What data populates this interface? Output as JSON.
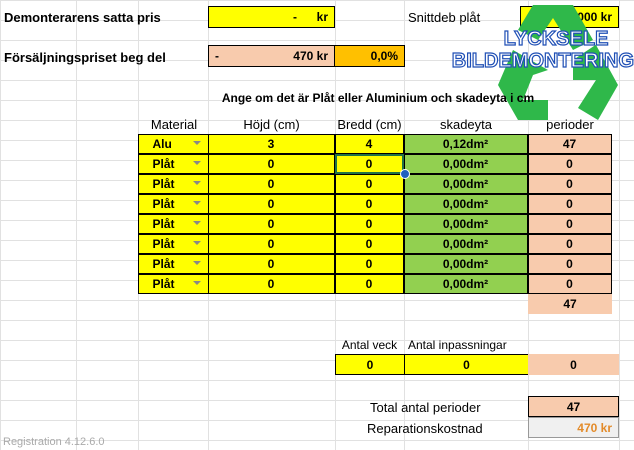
{
  "top": {
    "demont_label": "Demonterarens satta pris",
    "demont_dash": "-",
    "demont_value": "kr",
    "snitt_label": "Snittdeb plåt",
    "snitt_value": "000 kr",
    "fors_label": "Försäljningspriset beg del",
    "fors_dash": "-",
    "fors_value": "470 kr",
    "fors_percent": "0,0%"
  },
  "logo": {
    "line1": "LYCKSELE",
    "line2": "BILDEMONTERING",
    "icon": "recycle-icon"
  },
  "instruction": "Ange om det är Plåt eller Aluminium och skadeyta i cm",
  "table": {
    "headers": [
      "Material",
      "Höjd (cm)",
      "Bredd (cm)",
      "skadeyta",
      "perioder"
    ],
    "rows": [
      [
        "Alu",
        "3",
        "4",
        "0,12dm²",
        "47"
      ],
      [
        "Plåt",
        "0",
        "0",
        "0,00dm²",
        "0"
      ],
      [
        "Plåt",
        "0",
        "0",
        "0,00dm²",
        "0"
      ],
      [
        "Plåt",
        "0",
        "0",
        "0,00dm²",
        "0"
      ],
      [
        "Plåt",
        "0",
        "0",
        "0,00dm²",
        "0"
      ],
      [
        "Plåt",
        "0",
        "0",
        "0,00dm²",
        "0"
      ],
      [
        "Plåt",
        "0",
        "0",
        "0,00dm²",
        "0"
      ],
      [
        "Plåt",
        "0",
        "0",
        "0,00dm²",
        "0"
      ]
    ],
    "sum": "47"
  },
  "extra": {
    "veck_label": "Antal veck",
    "inpass_label": "Antal inpassningar",
    "veck": "0",
    "inpass": "0",
    "result": "0"
  },
  "totals": {
    "total_label": "Total antal perioder",
    "total": "47",
    "cost_label": "Reparationskostnad",
    "cost": "470 kr"
  },
  "footer": "Registration 4.12.6.0",
  "colors": {
    "yellow": "#ffff00",
    "peach": "#f8cbad",
    "orange": "#ffc000",
    "green": "#92d050",
    "cost_text": "#e38b2a"
  }
}
